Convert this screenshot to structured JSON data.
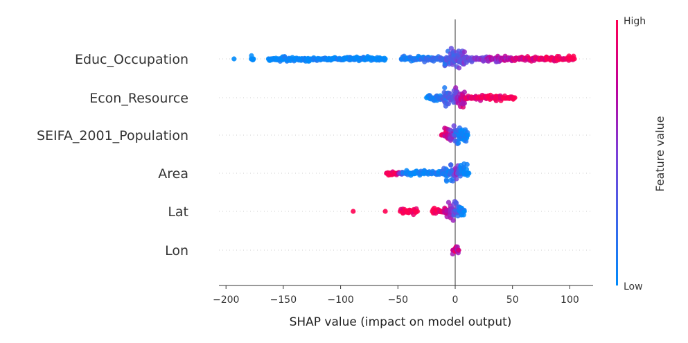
{
  "chart_data": {
    "type": "scatter",
    "subtype": "beeswarm",
    "title": "",
    "xlabel": "SHAP value (impact on model output)",
    "ylabel": "",
    "xlim": [
      -208,
      120
    ],
    "xticks": [
      -200,
      -150,
      -100,
      -50,
      0,
      50,
      100
    ],
    "xtick_labels": [
      "−200",
      "−150",
      "−100",
      "−50",
      "0",
      "50",
      "100"
    ],
    "grid": false,
    "colorbar": {
      "label": "Feature value",
      "high": "High",
      "low": "Low",
      "low_color": "#008bfb",
      "high_color": "#ff0052"
    },
    "features": [
      {
        "name": "Educ_Occupation",
        "points": [
          [
            -193,
            0
          ],
          [
            -178,
            0
          ],
          [
            -176,
            0
          ],
          [
            -163,
            0
          ],
          [
            -155,
            0
          ],
          [
            -150,
            0
          ],
          [
            -145,
            0
          ],
          [
            -140,
            0
          ],
          [
            -133,
            0
          ],
          [
            -130,
            0
          ],
          [
            -126,
            0
          ],
          [
            -117,
            0
          ],
          [
            -111,
            0
          ],
          [
            -104,
            0
          ],
          [
            -96,
            0
          ],
          [
            -90,
            0
          ],
          [
            -87,
            0
          ],
          [
            -82,
            0
          ],
          [
            -78,
            0
          ],
          [
            -76,
            0
          ],
          [
            -74,
            0
          ],
          [
            -70,
            0
          ],
          [
            -61,
            0
          ],
          [
            -47,
            0.02
          ],
          [
            -42,
            0.05
          ],
          [
            -38,
            0.08
          ],
          [
            -35,
            0.1
          ],
          [
            -30,
            0.12
          ],
          [
            -26,
            0.15
          ],
          [
            -22,
            0.18
          ],
          [
            -18,
            0.2
          ],
          [
            -14,
            0.22
          ],
          [
            -10,
            0.25
          ],
          [
            -6,
            0.3
          ],
          [
            -3,
            0.32
          ],
          [
            0,
            0.35
          ],
          [
            2,
            0.4
          ],
          [
            5,
            0.42
          ],
          [
            9,
            0.45
          ],
          [
            13,
            0.48
          ],
          [
            17,
            0.5
          ],
          [
            21,
            0.52
          ],
          [
            26,
            0.55
          ],
          [
            30,
            0.6
          ],
          [
            34,
            0.62
          ],
          [
            38,
            0.65
          ],
          [
            43,
            0.7
          ],
          [
            48,
            0.75
          ],
          [
            53,
            0.78
          ],
          [
            58,
            0.82
          ],
          [
            62,
            0.85
          ],
          [
            67,
            0.88
          ],
          [
            72,
            0.9
          ],
          [
            77,
            0.93
          ],
          [
            82,
            0.95
          ],
          [
            87,
            0.97
          ],
          [
            92,
            0.98
          ],
          [
            97,
            0.99
          ],
          [
            101,
            1.0
          ],
          [
            104,
            1.0
          ]
        ],
        "density_center": [
          -30,
          30,
          80
        ]
      },
      {
        "name": "Econ_Resource",
        "points": [
          [
            -25,
            0
          ],
          [
            -20,
            0.05
          ],
          [
            -15,
            0.1
          ],
          [
            -12,
            0.15
          ],
          [
            -9,
            0.2
          ],
          [
            -6,
            0.3
          ],
          [
            -4,
            0.35
          ],
          [
            -2,
            0.4
          ],
          [
            0,
            0.45
          ],
          [
            2,
            0.55
          ],
          [
            5,
            0.7
          ],
          [
            8,
            0.8
          ],
          [
            12,
            0.85
          ],
          [
            16,
            0.9
          ],
          [
            20,
            0.92
          ],
          [
            24,
            0.95
          ],
          [
            28,
            0.96
          ],
          [
            33,
            0.98
          ],
          [
            38,
            0.99
          ],
          [
            42,
            1.0
          ],
          [
            52,
            1.0
          ]
        ]
      },
      {
        "name": "SEIFA_2001_Population",
        "points": [
          [
            -12,
            0.9
          ],
          [
            -9,
            0.85
          ],
          [
            -7,
            0.8
          ],
          [
            -5,
            0.75
          ],
          [
            -3,
            0.6
          ],
          [
            -1,
            0.5
          ],
          [
            1,
            0.2
          ],
          [
            3,
            0.1
          ],
          [
            5,
            0.05
          ],
          [
            8,
            0
          ],
          [
            11,
            0
          ]
        ]
      },
      {
        "name": "Area",
        "points": [
          [
            -60,
            1.0
          ],
          [
            -52,
            1.0
          ],
          [
            -43,
            0
          ],
          [
            -38,
            0
          ],
          [
            -34,
            0
          ],
          [
            -30,
            0
          ],
          [
            -26,
            0.02
          ],
          [
            -22,
            0.03
          ],
          [
            -18,
            0.05
          ],
          [
            -15,
            0.08
          ],
          [
            -12,
            0.1
          ],
          [
            -9,
            0.1
          ],
          [
            -6,
            0.1
          ],
          [
            -3,
            0.15
          ],
          [
            -1,
            0.2
          ],
          [
            0,
            0.5
          ],
          [
            1,
            0.8
          ],
          [
            3,
            0.2
          ],
          [
            6,
            0.1
          ],
          [
            9,
            0.05
          ],
          [
            12,
            0
          ]
        ]
      },
      {
        "name": "Lat",
        "points": [
          [
            -89,
            1.0
          ],
          [
            -61,
            1.0
          ],
          [
            -48,
            1.0
          ],
          [
            -43,
            1.0
          ],
          [
            -37,
            1.0
          ],
          [
            -33,
            1.0
          ],
          [
            -20,
            1.0
          ],
          [
            -16,
            1.0
          ],
          [
            -12,
            0.95
          ],
          [
            -8,
            0.8
          ],
          [
            -6,
            0.7
          ],
          [
            -4,
            0.6
          ],
          [
            -2,
            0.5
          ],
          [
            0,
            0.4
          ],
          [
            2,
            0.3
          ],
          [
            4,
            0.1
          ],
          [
            6,
            0.05
          ],
          [
            8,
            0
          ]
        ]
      },
      {
        "name": "Lon",
        "points": [
          [
            -2,
            0.9
          ],
          [
            -1,
            0.7
          ],
          [
            0,
            0.8
          ],
          [
            1,
            0.95
          ],
          [
            2,
            0.6
          ],
          [
            3,
            0.85
          ]
        ]
      }
    ]
  }
}
